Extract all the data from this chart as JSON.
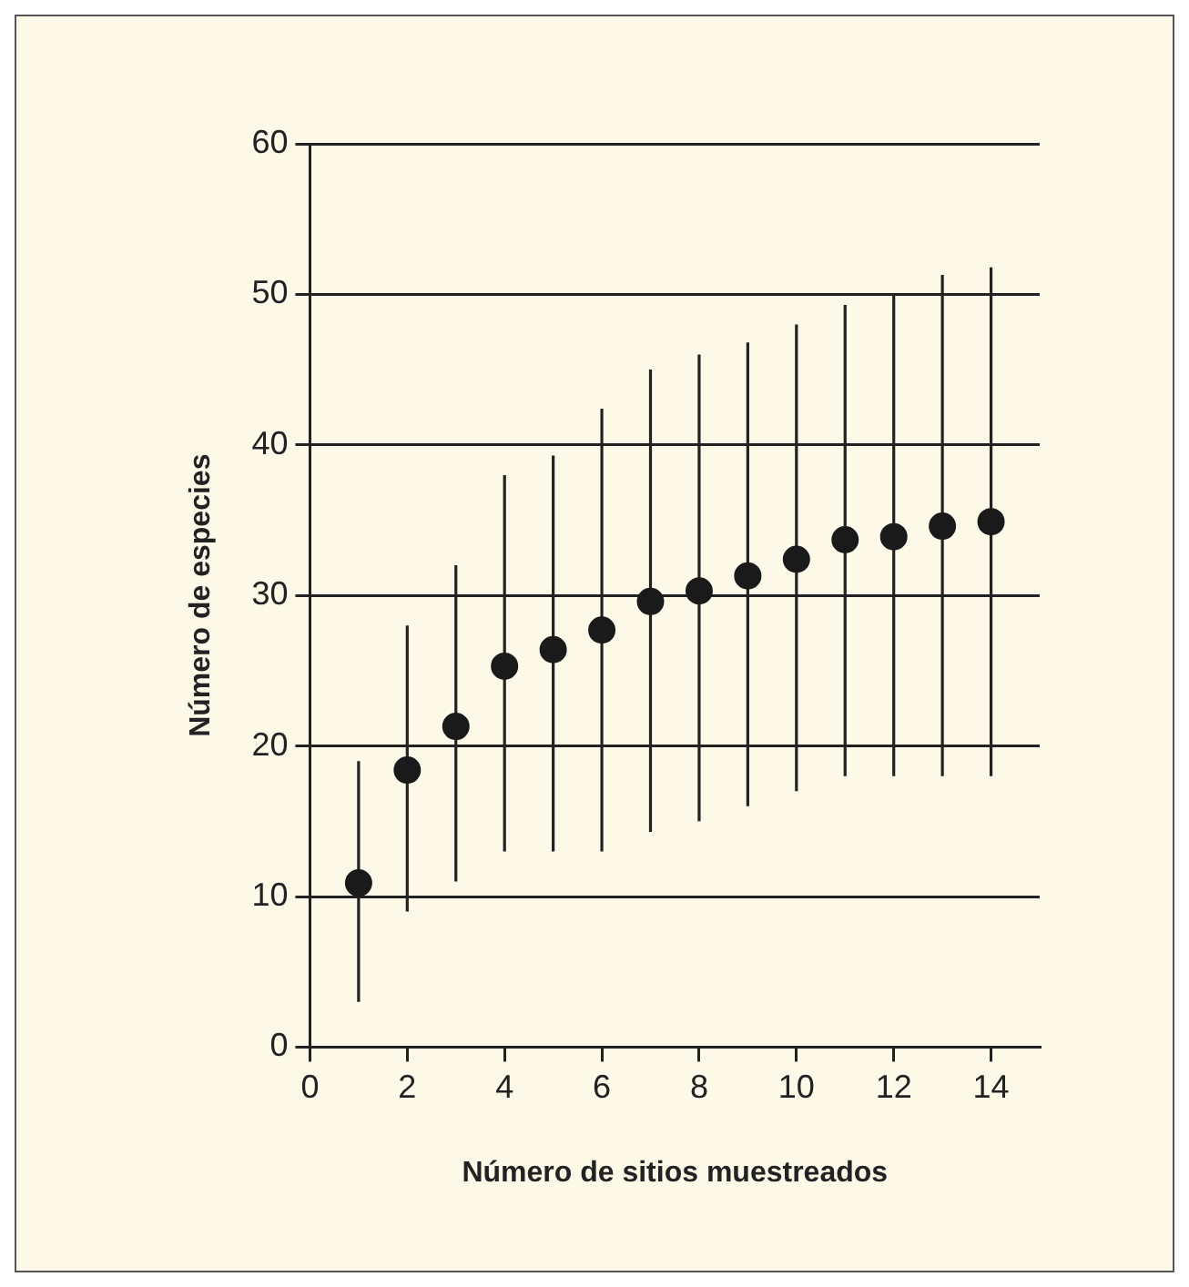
{
  "chart_data": {
    "type": "scatter",
    "xlabel": "Número de sitios muestreados",
    "ylabel": "Número de especies",
    "x": [
      1,
      2,
      3,
      4,
      5,
      6,
      7,
      8,
      9,
      10,
      11,
      12,
      13,
      14
    ],
    "values": [
      10.9,
      18.4,
      21.3,
      25.3,
      26.4,
      27.7,
      29.6,
      30.3,
      31.3,
      32.4,
      33.7,
      33.9,
      34.6,
      34.9
    ],
    "errors": [
      [
        3,
        19
      ],
      [
        9,
        28
      ],
      [
        11,
        32
      ],
      [
        13,
        38
      ],
      [
        13,
        39.3
      ],
      [
        13,
        42.4
      ],
      [
        14.3,
        45
      ],
      [
        15,
        46
      ],
      [
        16,
        46.8
      ],
      [
        17,
        48
      ],
      [
        18,
        49.3
      ],
      [
        18,
        50
      ],
      [
        18,
        51.3
      ],
      [
        18,
        51.8
      ]
    ],
    "color": "#1a1a1a",
    "marker": "circle",
    "xlim": [
      0,
      15
    ],
    "xticks": [
      0,
      2,
      4,
      6,
      8,
      10,
      12,
      14
    ],
    "ylim": [
      0,
      60
    ],
    "yticks": [
      0,
      10,
      20,
      30,
      40,
      50,
      60
    ],
    "grid": "y"
  }
}
